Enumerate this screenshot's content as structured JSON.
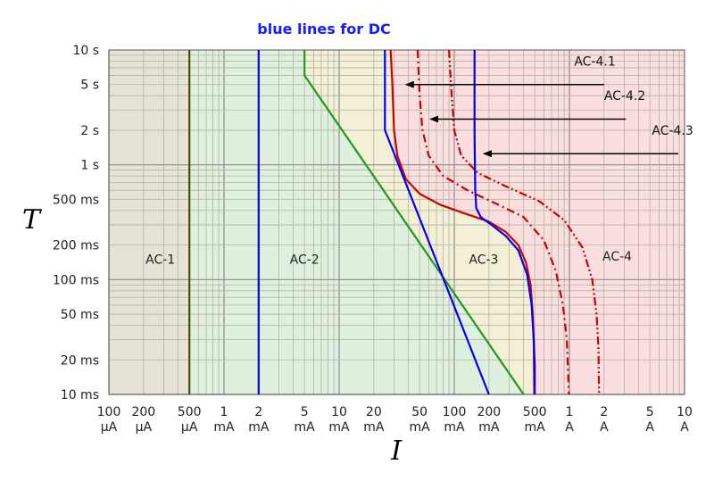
{
  "chart_data": {
    "type": "line",
    "title": "blue lines for DC",
    "xlabel": "I",
    "ylabel": "T",
    "x_scale": "log",
    "y_scale": "log",
    "x_unit": "mA",
    "y_unit": "ms",
    "xlim": [
      0.1,
      10000
    ],
    "ylim": [
      10,
      10000
    ],
    "grid": true,
    "x_ticks": [
      {
        "value": 0.1,
        "top": "100",
        "bottom": "µA"
      },
      {
        "value": 0.2,
        "top": "200",
        "bottom": "µA"
      },
      {
        "value": 0.5,
        "top": "500",
        "bottom": "µA"
      },
      {
        "value": 1,
        "top": "1",
        "bottom": "mA"
      },
      {
        "value": 2,
        "top": "2",
        "bottom": "mA"
      },
      {
        "value": 5,
        "top": "5",
        "bottom": "mA"
      },
      {
        "value": 10,
        "top": "10",
        "bottom": "mA"
      },
      {
        "value": 20,
        "top": "20",
        "bottom": "mA"
      },
      {
        "value": 50,
        "top": "50",
        "bottom": "mA"
      },
      {
        "value": 100,
        "top": "100",
        "bottom": "mA"
      },
      {
        "value": 200,
        "top": "200",
        "bottom": "mA"
      },
      {
        "value": 500,
        "top": "500",
        "bottom": "mA"
      },
      {
        "value": 1000,
        "top": "1",
        "bottom": "A"
      },
      {
        "value": 2000,
        "top": "2",
        "bottom": "A"
      },
      {
        "value": 5000,
        "top": "5",
        "bottom": "A"
      },
      {
        "value": 10000,
        "top": "10",
        "bottom": "A"
      }
    ],
    "y_ticks": [
      {
        "value": 10000,
        "label": "10 s"
      },
      {
        "value": 5000,
        "label": "5 s"
      },
      {
        "value": 2000,
        "label": "2 s"
      },
      {
        "value": 1000,
        "label": "1 s"
      },
      {
        "value": 500,
        "label": "500 ms"
      },
      {
        "value": 200,
        "label": "200 ms"
      },
      {
        "value": 100,
        "label": "100 ms"
      },
      {
        "value": 50,
        "label": "50 ms"
      },
      {
        "value": 20,
        "label": "20 ms"
      },
      {
        "value": 10,
        "label": "10 ms"
      }
    ],
    "zones": [
      {
        "name": "AC-1",
        "color": "#e6e2d8",
        "label_at": [
          0.28,
          150
        ]
      },
      {
        "name": "AC-2",
        "color": "#dff0df",
        "label_at": [
          5,
          150
        ]
      },
      {
        "name": "AC-3",
        "color": "#f3f0d6",
        "label_at": [
          180,
          150
        ]
      },
      {
        "name": "AC-4",
        "color": "#fbdede",
        "label_at": [
          2600,
          160
        ]
      }
    ],
    "series": [
      {
        "style": "ac-boundary-a",
        "color": "#4a4a00",
        "points": [
          [
            0.5,
            10
          ],
          [
            0.5,
            10000
          ]
        ]
      },
      {
        "style": "ac-boundary-b",
        "color": "#1f9a1f",
        "points": [
          [
            5,
            10000
          ],
          [
            5,
            6000
          ],
          [
            400,
            10
          ]
        ]
      },
      {
        "style": "ac-boundary-c1",
        "color": "#cc0000",
        "dash": "solid",
        "points": [
          [
            28,
            10000
          ],
          [
            29,
            5000
          ],
          [
            30,
            2000
          ],
          [
            32,
            1200
          ],
          [
            38,
            750
          ],
          [
            50,
            560
          ],
          [
            75,
            450
          ],
          [
            120,
            380
          ],
          [
            200,
            320
          ],
          [
            280,
            260
          ],
          [
            360,
            200
          ],
          [
            420,
            140
          ],
          [
            460,
            90
          ],
          [
            480,
            50
          ],
          [
            490,
            30
          ],
          [
            495,
            10
          ]
        ]
      },
      {
        "style": "ac-boundary-c2",
        "color": "#cc0000",
        "dash": "dashdot",
        "points": [
          [
            48,
            10000
          ],
          [
            50,
            4000
          ],
          [
            53,
            2000
          ],
          [
            60,
            1200
          ],
          [
            80,
            800
          ],
          [
            130,
            600
          ],
          [
            230,
            460
          ],
          [
            400,
            350
          ],
          [
            600,
            220
          ],
          [
            760,
            120
          ],
          [
            880,
            60
          ],
          [
            950,
            30
          ],
          [
            990,
            10
          ]
        ]
      },
      {
        "style": "ac-boundary-c3",
        "color": "#cc0000",
        "dash": "dashdotdot",
        "points": [
          [
            90,
            10000
          ],
          [
            95,
            4000
          ],
          [
            100,
            2000
          ],
          [
            115,
            1200
          ],
          [
            160,
            850
          ],
          [
            280,
            650
          ],
          [
            550,
            480
          ],
          [
            900,
            330
          ],
          [
            1300,
            190
          ],
          [
            1580,
            100
          ],
          [
            1720,
            50
          ],
          [
            1790,
            25
          ],
          [
            1810,
            10
          ]
        ]
      },
      {
        "style": "dc-boundary-a",
        "color": "#0000ee",
        "points": [
          [
            2,
            10
          ],
          [
            2,
            10000
          ]
        ]
      },
      {
        "style": "dc-boundary-b",
        "color": "#0000ee",
        "points": [
          [
            25,
            10000
          ],
          [
            25,
            2000
          ],
          [
            200,
            10
          ]
        ]
      },
      {
        "style": "dc-boundary-c",
        "color": "#0000ee",
        "points": [
          [
            150,
            10000
          ],
          [
            150,
            2000
          ],
          [
            151,
            1000
          ],
          [
            152,
            600
          ],
          [
            155,
            420
          ],
          [
            170,
            350
          ],
          [
            210,
            300
          ],
          [
            280,
            240
          ],
          [
            360,
            180
          ],
          [
            430,
            110
          ],
          [
            470,
            60
          ],
          [
            490,
            30
          ],
          [
            500,
            18
          ],
          [
            500,
            10
          ]
        ]
      }
    ],
    "annotations": [
      {
        "text": "AC-4.1",
        "text_at": [
          1100,
          8000
        ],
        "arrow_from": [
          2000,
          5000
        ],
        "arrow_to": [
          38,
          5000
        ]
      },
      {
        "text": "AC-4.2",
        "text_at": [
          2000,
          4000
        ],
        "arrow_from": [
          3100,
          2500
        ],
        "arrow_to": [
          62,
          2500
        ]
      },
      {
        "text": "AC-4.3",
        "text_at": [
          5200,
          2000
        ],
        "arrow_from": [
          8800,
          1250
        ],
        "arrow_to": [
          180,
          1250
        ]
      }
    ]
  }
}
